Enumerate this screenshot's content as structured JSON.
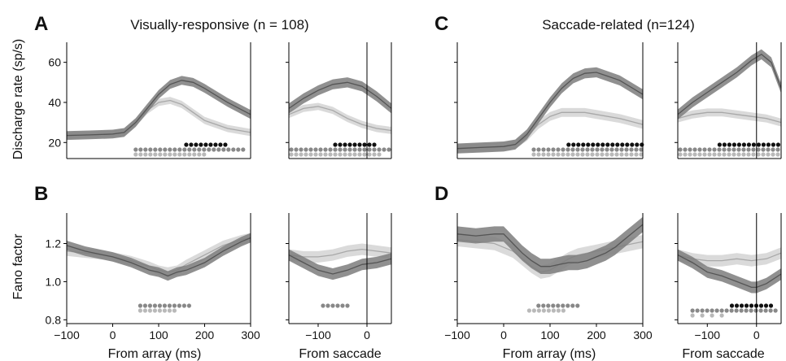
{
  "panels": [
    {
      "letter": "A",
      "title": "Visually-responsive (n = 108)"
    },
    {
      "letter": "B",
      "title": ""
    },
    {
      "letter": "C",
      "title": "Saccade-related (n=124)"
    },
    {
      "letter": "D",
      "title": ""
    }
  ],
  "ylabels": {
    "rate": "Discharge rate (sp/s)",
    "fano": "Fano factor"
  },
  "xlabels": {
    "array": "From array (ms)",
    "saccade": "From saccade"
  },
  "chart_data": {
    "type": "line",
    "colors": {
      "dark_band": "#7d7d7d",
      "dark_line": "#555555",
      "light_band": "#d6d6d6",
      "light_line": "#a8a8a8",
      "dot_black": "#111111",
      "dot_dark": "#888888",
      "dot_light": "#b9b9b9"
    },
    "rate_ylim": [
      12,
      70
    ],
    "rate_yticks": [
      20,
      40,
      60
    ],
    "fano_ylim": [
      0.78,
      1.36
    ],
    "fano_yticks": [
      0.8,
      1.0,
      1.2
    ],
    "array_xlim": [
      -100,
      300
    ],
    "array_xticks": [
      -100,
      0,
      100,
      200,
      300
    ],
    "sacc_xlim": [
      -160,
      50
    ],
    "sacc_xticks": [
      -100,
      0
    ],
    "subplots": [
      {
        "id": "A-array",
        "kind": "rate",
        "axis": "array",
        "dark": {
          "x": [
            -100,
            -50,
            0,
            25,
            50,
            75,
            100,
            125,
            150,
            175,
            200,
            250,
            300
          ],
          "y": [
            23.5,
            23.8,
            24.2,
            25,
            30,
            37,
            44,
            49,
            51,
            50,
            47,
            40,
            34
          ],
          "band": 2.2
        },
        "light": {
          "x": [
            -100,
            -50,
            0,
            25,
            50,
            75,
            100,
            125,
            150,
            175,
            200,
            250,
            300
          ],
          "y": [
            23.5,
            23.8,
            24.2,
            25,
            30,
            36,
            40,
            41,
            39,
            35,
            31,
            27,
            25
          ],
          "band": 1.8
        },
        "dots": [
          {
            "row": 1,
            "color": "black",
            "from": 160,
            "to": 250
          },
          {
            "row": 2,
            "color": "dark",
            "from": 50,
            "to": 290
          },
          {
            "row": 3,
            "color": "light",
            "from": 50,
            "to": 200
          }
        ]
      },
      {
        "id": "A-sacc",
        "kind": "rate",
        "axis": "sacc",
        "dark": {
          "x": [
            -160,
            -130,
            -100,
            -70,
            -40,
            -10,
            20,
            50
          ],
          "y": [
            37,
            42,
            46,
            49,
            50,
            48,
            43,
            37
          ],
          "band": 2.5
        },
        "light": {
          "x": [
            -160,
            -130,
            -100,
            -70,
            -40,
            -10,
            20,
            50
          ],
          "y": [
            34,
            37,
            38,
            36,
            32,
            29,
            27,
            26
          ],
          "band": 1.8
        },
        "dots": [
          {
            "row": 1,
            "color": "black",
            "from": -65,
            "to": 15
          },
          {
            "row": 2,
            "color": "dark",
            "from": -155,
            "to": 45
          },
          {
            "row": 3,
            "color": "light",
            "from": -155,
            "to": 25
          }
        ]
      },
      {
        "id": "B-array",
        "kind": "fano",
        "axis": "array",
        "dark": {
          "x": [
            -100,
            -60,
            -20,
            0,
            40,
            80,
            100,
            120,
            140,
            160,
            200,
            240,
            280,
            300
          ],
          "y": [
            1.19,
            1.16,
            1.14,
            1.13,
            1.1,
            1.06,
            1.05,
            1.03,
            1.05,
            1.06,
            1.1,
            1.16,
            1.21,
            1.23
          ],
          "band": 0.025
        },
        "light": {
          "x": [
            -100,
            -60,
            -20,
            0,
            40,
            80,
            100,
            120,
            140,
            160,
            200,
            240,
            280,
            300
          ],
          "y": [
            1.16,
            1.15,
            1.14,
            1.13,
            1.11,
            1.08,
            1.06,
            1.05,
            1.06,
            1.09,
            1.14,
            1.19,
            1.22,
            1.23
          ],
          "band": 0.025
        },
        "dots": [
          {
            "row": 1,
            "color": "dark",
            "from": 60,
            "to": 170
          },
          {
            "row": 2,
            "color": "light",
            "from": 60,
            "to": 140
          }
        ]
      },
      {
        "id": "B-sacc",
        "kind": "fano",
        "axis": "sacc",
        "dark": {
          "x": [
            -160,
            -130,
            -100,
            -70,
            -40,
            -10,
            20,
            50
          ],
          "y": [
            1.14,
            1.1,
            1.06,
            1.04,
            1.06,
            1.09,
            1.1,
            1.12
          ],
          "band": 0.03
        },
        "light": {
          "x": [
            -160,
            -130,
            -100,
            -70,
            -40,
            -10,
            20,
            50
          ],
          "y": [
            1.14,
            1.13,
            1.13,
            1.14,
            1.16,
            1.17,
            1.16,
            1.15
          ],
          "band": 0.03
        },
        "dots": [
          {
            "row": 1,
            "color": "dark",
            "from": -90,
            "to": -35
          }
        ]
      },
      {
        "id": "C-array",
        "kind": "rate",
        "axis": "array",
        "dark": {
          "x": [
            -100,
            -50,
            0,
            25,
            50,
            75,
            100,
            125,
            150,
            175,
            200,
            225,
            250,
            300
          ],
          "y": [
            17,
            17.5,
            18,
            19,
            24,
            32,
            40,
            47,
            52,
            54.5,
            55,
            53,
            51,
            44
          ],
          "band": 2.5
        },
        "light": {
          "x": [
            -100,
            -50,
            0,
            25,
            50,
            75,
            100,
            125,
            150,
            175,
            200,
            250,
            300
          ],
          "y": [
            17,
            17.5,
            18,
            19,
            23,
            29,
            33,
            35,
            35,
            35,
            34,
            32,
            29
          ],
          "band": 2.2
        },
        "dots": [
          {
            "row": 1,
            "color": "black",
            "from": 140,
            "to": 300
          },
          {
            "row": 2,
            "color": "dark",
            "from": 65,
            "to": 300
          },
          {
            "row": 3,
            "color": "light",
            "from": 65,
            "to": 300
          }
        ]
      },
      {
        "id": "C-sacc",
        "kind": "rate",
        "axis": "sacc",
        "dark": {
          "x": [
            -160,
            -130,
            -100,
            -70,
            -40,
            -10,
            10,
            30,
            50
          ],
          "y": [
            34,
            40,
            45,
            50,
            55,
            61,
            64,
            60,
            47
          ],
          "band": 2.5
        },
        "light": {
          "x": [
            -160,
            -130,
            -100,
            -70,
            -40,
            -10,
            20,
            50
          ],
          "y": [
            32,
            34,
            35,
            35,
            34,
            33,
            32,
            30
          ],
          "band": 2.0
        },
        "dots": [
          {
            "row": 1,
            "color": "black",
            "from": -75,
            "to": 45
          },
          {
            "row": 2,
            "color": "dark",
            "from": -155,
            "to": 45
          },
          {
            "row": 3,
            "color": "light",
            "from": -155,
            "to": 45
          }
        ]
      },
      {
        "id": "D-array",
        "kind": "fano",
        "axis": "array",
        "dark": {
          "x": [
            -100,
            -60,
            -20,
            0,
            20,
            40,
            60,
            80,
            100,
            120,
            140,
            160,
            180,
            200,
            220,
            240,
            260,
            280,
            300
          ],
          "y": [
            1.25,
            1.24,
            1.25,
            1.25,
            1.2,
            1.15,
            1.11,
            1.08,
            1.08,
            1.09,
            1.1,
            1.1,
            1.11,
            1.13,
            1.15,
            1.18,
            1.22,
            1.26,
            1.3
          ],
          "band": 0.04
        },
        "light": {
          "x": [
            -100,
            -60,
            -20,
            0,
            20,
            40,
            60,
            80,
            100,
            120,
            140,
            160,
            180,
            200,
            220,
            240,
            260,
            280,
            300
          ],
          "y": [
            1.22,
            1.21,
            1.2,
            1.18,
            1.16,
            1.12,
            1.08,
            1.05,
            1.06,
            1.09,
            1.12,
            1.14,
            1.15,
            1.16,
            1.17,
            1.18,
            1.19,
            1.2,
            1.21
          ],
          "band": 0.035
        },
        "dots": [
          {
            "row": 1,
            "color": "dark",
            "from": 75,
            "to": 160
          },
          {
            "row": 2,
            "color": "light",
            "from": 55,
            "to": 130
          }
        ]
      },
      {
        "id": "D-sacc",
        "kind": "fano",
        "axis": "sacc",
        "dark": {
          "x": [
            -160,
            -130,
            -100,
            -70,
            -40,
            -10,
            0,
            20,
            50
          ],
          "y": [
            1.14,
            1.1,
            1.05,
            1.03,
            1.0,
            0.97,
            0.97,
            0.99,
            1.04
          ],
          "band": 0.03
        },
        "light": {
          "x": [
            -160,
            -130,
            -100,
            -70,
            -40,
            -10,
            20,
            50
          ],
          "y": [
            1.14,
            1.12,
            1.11,
            1.11,
            1.12,
            1.11,
            1.12,
            1.15
          ],
          "band": 0.03
        },
        "dots": [
          {
            "row": 1,
            "color": "black",
            "from": -50,
            "to": 30
          },
          {
            "row": 2,
            "color": "dark",
            "from": -130,
            "to": 45
          },
          {
            "row": 3,
            "color": "light",
            "from": -130,
            "to": -70,
            "sparse": true
          }
        ]
      }
    ]
  }
}
